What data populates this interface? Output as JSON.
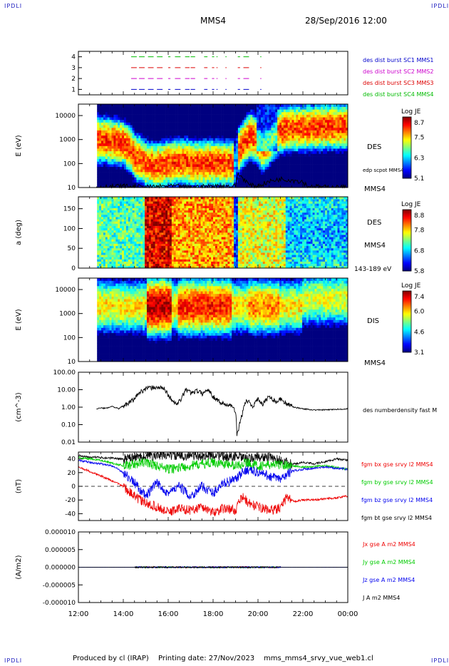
{
  "header": {
    "corner_tl": "IPDLI",
    "corner_tr": "IPDLI",
    "corner_bl": "IPDLI",
    "corner_br": "IPDLI",
    "spacecraft": "MMS4",
    "datetime": "28/Sep/2016 12:00"
  },
  "footer": {
    "produced": "Produced by cl (IRAP)",
    "printing": "Printing date: 27/Nov/2023",
    "file": "mms_mms4_srvy_vue_web1.cl"
  },
  "colors": {
    "mms1": "#0000cc",
    "mms2": "#cc00cc",
    "mms3": "#dd0000",
    "mms4": "#00bb00",
    "bx": "#ee0000",
    "by": "#00cc00",
    "bz": "#0000ee",
    "bt": "#000000"
  },
  "chart_data": [
    {
      "id": "burst",
      "type": "scatter",
      "yticks": [
        "4",
        "3",
        "2",
        "1"
      ],
      "ylim": [
        0.5,
        4.5
      ],
      "series": [
        {
          "name": "des dist burst SC1 MMS1",
          "y": 1,
          "color": "#0000cc",
          "segments": [
            [
              14.35,
              14.6
            ],
            [
              14.7,
              14.95
            ],
            [
              15.1,
              15.35
            ],
            [
              15.5,
              15.75
            ],
            [
              16.0,
              16.1
            ],
            [
              16.3,
              16.55
            ],
            [
              16.75,
              16.95
            ],
            [
              17.0,
              17.2
            ],
            [
              17.6,
              17.75
            ],
            [
              17.95,
              18.05
            ],
            [
              18.15,
              18.2
            ],
            [
              18.55,
              18.6
            ],
            [
              19.1,
              19.2
            ],
            [
              19.35,
              19.6
            ],
            [
              20.1,
              20.15
            ]
          ]
        },
        {
          "name": "des dist burst SC2 MMS2",
          "y": 2,
          "color": "#cc00cc",
          "segments": [
            [
              14.35,
              14.6
            ],
            [
              14.7,
              14.95
            ],
            [
              15.1,
              15.35
            ],
            [
              15.5,
              15.75
            ],
            [
              16.0,
              16.1
            ],
            [
              16.3,
              16.55
            ],
            [
              16.75,
              16.95
            ],
            [
              17.0,
              17.2
            ],
            [
              17.6,
              17.75
            ],
            [
              17.95,
              18.05
            ],
            [
              18.15,
              18.2
            ],
            [
              18.55,
              18.6
            ],
            [
              19.1,
              19.2
            ],
            [
              19.35,
              19.6
            ],
            [
              20.1,
              20.15
            ]
          ]
        },
        {
          "name": "des dist burst SC3 MMS3",
          "y": 3,
          "color": "#dd0000",
          "segments": [
            [
              14.35,
              14.6
            ],
            [
              14.7,
              14.95
            ],
            [
              15.1,
              15.35
            ],
            [
              15.5,
              15.75
            ],
            [
              16.0,
              16.1
            ],
            [
              16.3,
              16.55
            ],
            [
              16.75,
              16.95
            ],
            [
              17.0,
              17.2
            ],
            [
              17.6,
              17.75
            ],
            [
              17.95,
              18.05
            ],
            [
              18.15,
              18.2
            ],
            [
              18.55,
              18.6
            ],
            [
              19.1,
              19.2
            ],
            [
              19.35,
              19.6
            ],
            [
              20.1,
              20.15
            ]
          ]
        },
        {
          "name": "des dist burst SC4 MMS4",
          "y": 4,
          "color": "#00bb00",
          "segments": [
            [
              14.35,
              14.6
            ],
            [
              14.7,
              14.95
            ],
            [
              15.1,
              15.35
            ],
            [
              15.5,
              15.75
            ],
            [
              16.0,
              16.1
            ],
            [
              16.3,
              16.55
            ],
            [
              16.75,
              16.95
            ],
            [
              17.0,
              17.2
            ],
            [
              17.6,
              17.75
            ],
            [
              17.95,
              18.05
            ],
            [
              18.15,
              18.2
            ],
            [
              18.55,
              18.6
            ],
            [
              19.1,
              19.2
            ],
            [
              19.35,
              19.6
            ],
            [
              20.1,
              20.15
            ]
          ]
        }
      ]
    },
    {
      "id": "des_energy",
      "type": "heatmap",
      "ylabel": "E (eV)",
      "ylim": [
        10,
        30000
      ],
      "yscale": "log",
      "yticks": [
        "10000",
        "1000",
        "100",
        "10"
      ],
      "label": "DES",
      "colorbar_title": "Log JE",
      "colorbar_ticks": [
        "8.7",
        "7.5",
        "6.3",
        "5.1"
      ],
      "clim": [
        5.1,
        8.7
      ],
      "overlay_label": "edp scpot MMS4",
      "bottom_label": "MMS4",
      "peak_energy_eV": [
        [
          12.8,
          1000
        ],
        [
          13.5,
          900
        ],
        [
          14.0,
          700
        ],
        [
          14.5,
          200
        ],
        [
          15.0,
          100
        ],
        [
          15.5,
          80
        ],
        [
          16.0,
          100
        ],
        [
          16.5,
          120
        ],
        [
          17.0,
          110
        ],
        [
          17.5,
          100
        ],
        [
          18.0,
          110
        ],
        [
          18.5,
          100
        ],
        [
          19.0,
          100
        ],
        [
          19.3,
          600
        ],
        [
          19.7,
          1500
        ],
        [
          20.2,
          400
        ],
        [
          20.5,
          800
        ],
        [
          21.0,
          2500
        ],
        [
          21.5,
          3000
        ],
        [
          22.0,
          3000
        ],
        [
          23.0,
          3500
        ],
        [
          24.0,
          3500
        ]
      ],
      "scpot": [
        [
          12.8,
          10
        ],
        [
          14.0,
          11
        ],
        [
          15.0,
          10
        ],
        [
          16.0,
          11
        ],
        [
          17.0,
          10
        ],
        [
          18.0,
          11
        ],
        [
          19.0,
          11
        ],
        [
          19.1,
          35
        ],
        [
          19.3,
          25
        ],
        [
          19.6,
          12
        ],
        [
          20.0,
          11
        ],
        [
          20.6,
          18
        ],
        [
          21.0,
          22
        ],
        [
          21.5,
          20
        ],
        [
          22.0,
          17
        ],
        [
          22.2,
          11
        ],
        [
          23.0,
          10
        ],
        [
          24.0,
          10
        ]
      ]
    },
    {
      "id": "des_pitch",
      "type": "heatmap",
      "ylabel": "a (deg)",
      "ylim": [
        0,
        180
      ],
      "yticks": [
        "150",
        "100",
        "50",
        "0"
      ],
      "label": "DES",
      "colorbar_title": "Log JE",
      "colorbar_ticks": [
        "8.8",
        "7.8",
        "6.8",
        "5.8"
      ],
      "clim": [
        5.8,
        8.8
      ],
      "side_label": "MMS4",
      "bottom_label": "143-189 eV"
    },
    {
      "id": "dis_energy",
      "type": "heatmap",
      "ylabel": "E (eV)",
      "ylim": [
        10,
        30000
      ],
      "yscale": "log",
      "yticks": [
        "10000",
        "1000",
        "100",
        "10"
      ],
      "label": "DIS",
      "colorbar_title": "Log JE",
      "colorbar_ticks": [
        "7.4",
        "6.0",
        "4.6",
        "3.1"
      ],
      "clim": [
        3.1,
        7.4
      ],
      "bottom_label": "MMS4"
    },
    {
      "id": "density",
      "type": "line",
      "ylabel": "(cm^-3)",
      "ylim": [
        0.01,
        100
      ],
      "yscale": "log",
      "yticks": [
        "100.00",
        "10.00",
        "1.00",
        "0.10",
        "0.01"
      ],
      "series": [
        {
          "name": "des numberdensity fast M",
          "color": "#000000",
          "points": [
            [
              12.8,
              0.8
            ],
            [
              13.0,
              0.9
            ],
            [
              13.2,
              0.85
            ],
            [
              13.5,
              1.1
            ],
            [
              13.8,
              0.8
            ],
            [
              14.0,
              1.2
            ],
            [
              14.2,
              1.5
            ],
            [
              14.5,
              3.0
            ],
            [
              14.8,
              8.0
            ],
            [
              15.0,
              12.0
            ],
            [
              15.5,
              14.0
            ],
            [
              15.8,
              12.0
            ],
            [
              16.0,
              5.0
            ],
            [
              16.2,
              2.0
            ],
            [
              16.4,
              1.5
            ],
            [
              16.6,
              3.0
            ],
            [
              16.8,
              10.0
            ],
            [
              17.0,
              7.0
            ],
            [
              17.3,
              9.0
            ],
            [
              17.5,
              6.0
            ],
            [
              17.8,
              10.0
            ],
            [
              18.0,
              4.0
            ],
            [
              18.3,
              2.0
            ],
            [
              18.5,
              1.5
            ],
            [
              18.8,
              1.2
            ],
            [
              19.0,
              0.5
            ],
            [
              19.05,
              0.03
            ],
            [
              19.15,
              0.05
            ],
            [
              19.3,
              0.4
            ],
            [
              19.5,
              2.5
            ],
            [
              19.8,
              1.0
            ],
            [
              20.0,
              3.0
            ],
            [
              20.2,
              1.5
            ],
            [
              20.5,
              4.0
            ],
            [
              20.8,
              2.0
            ],
            [
              21.0,
              3.0
            ],
            [
              21.3,
              1.5
            ],
            [
              21.6,
              1.0
            ],
            [
              22.0,
              0.8
            ],
            [
              22.5,
              0.7
            ],
            [
              23.0,
              0.7
            ],
            [
              23.5,
              0.75
            ],
            [
              24.0,
              0.8
            ]
          ]
        }
      ]
    },
    {
      "id": "magnetic_field",
      "type": "line",
      "ylabel": "(nT)",
      "ylim": [
        -50,
        50
      ],
      "yticks": [
        "40",
        "20",
        "0",
        "-20",
        "-40"
      ],
      "series": [
        {
          "name": "fgm bx gse srvy l2 MMS4",
          "color": "#ee0000",
          "points": [
            [
              12.0,
              28
            ],
            [
              12.5,
              22
            ],
            [
              13.0,
              15
            ],
            [
              13.5,
              8
            ],
            [
              14.0,
              0
            ],
            [
              14.5,
              -15
            ],
            [
              15.0,
              -25
            ],
            [
              15.5,
              -30
            ],
            [
              16.0,
              -38
            ],
            [
              16.5,
              -32
            ],
            [
              17.0,
              -35
            ],
            [
              17.5,
              -30
            ],
            [
              18.0,
              -38
            ],
            [
              18.5,
              -32
            ],
            [
              19.0,
              -35
            ],
            [
              19.3,
              -15
            ],
            [
              19.6,
              -25
            ],
            [
              20.0,
              -30
            ],
            [
              20.5,
              -35
            ],
            [
              21.0,
              -32
            ],
            [
              21.3,
              -15
            ],
            [
              21.6,
              -22
            ],
            [
              22.0,
              -20
            ],
            [
              22.5,
              -20
            ],
            [
              23.0,
              -18
            ],
            [
              23.5,
              -17
            ],
            [
              24.0,
              -14
            ]
          ]
        },
        {
          "name": "fgm by gse srvy l2 MMS4",
          "color": "#00cc00",
          "points": [
            [
              12.0,
              42
            ],
            [
              13.0,
              38
            ],
            [
              14.0,
              30
            ],
            [
              15.0,
              35
            ],
            [
              16.0,
              25
            ],
            [
              17.0,
              30
            ],
            [
              18.0,
              35
            ],
            [
              19.0,
              30
            ],
            [
              19.5,
              35
            ],
            [
              20.0,
              30
            ],
            [
              21.0,
              32
            ],
            [
              22.0,
              28
            ],
            [
              23.0,
              30
            ],
            [
              24.0,
              25
            ]
          ]
        },
        {
          "name": "fgm bz gse srvy l2 MMS4",
          "color": "#0000ee",
          "points": [
            [
              12.0,
              38
            ],
            [
              12.5,
              35
            ],
            [
              13.0,
              33
            ],
            [
              13.5,
              30
            ],
            [
              14.0,
              20
            ],
            [
              14.5,
              5
            ],
            [
              15.0,
              -15
            ],
            [
              15.5,
              5
            ],
            [
              16.0,
              -10
            ],
            [
              16.5,
              0
            ],
            [
              17.0,
              -15
            ],
            [
              17.5,
              0
            ],
            [
              18.0,
              -10
            ],
            [
              18.5,
              5
            ],
            [
              19.0,
              10
            ],
            [
              19.5,
              25
            ],
            [
              20.0,
              20
            ],
            [
              20.5,
              15
            ],
            [
              21.0,
              10
            ],
            [
              21.5,
              22
            ],
            [
              22.0,
              25
            ],
            [
              23.0,
              28
            ],
            [
              24.0,
              25
            ]
          ]
        },
        {
          "name": "fgm bt gse srvy l2 MMS4",
          "color": "#000000",
          "points": [
            [
              12.0,
              45
            ],
            [
              12.5,
              43
            ],
            [
              13.0,
              42
            ],
            [
              13.5,
              41
            ],
            [
              14.0,
              40
            ],
            [
              14.5,
              42
            ],
            [
              15.0,
              45
            ],
            [
              15.5,
              44
            ],
            [
              16.0,
              46
            ],
            [
              16.5,
              44
            ],
            [
              17.0,
              45
            ],
            [
              17.5,
              44
            ],
            [
              18.0,
              46
            ],
            [
              18.5,
              43
            ],
            [
              19.0,
              44
            ],
            [
              19.5,
              40
            ],
            [
              20.0,
              43
            ],
            [
              20.5,
              42
            ],
            [
              21.0,
              38
            ],
            [
              21.5,
              32
            ],
            [
              22.0,
              35
            ],
            [
              22.5,
              33
            ],
            [
              23.0,
              36
            ],
            [
              23.5,
              40
            ],
            [
              24.0,
              38
            ]
          ]
        }
      ]
    },
    {
      "id": "current_density",
      "type": "line",
      "ylabel": "(A/m2)",
      "ylim": [
        -1e-05,
        1e-05
      ],
      "yticks": [
        "0.000010",
        "0.000005",
        "0.000000",
        "-0.000005",
        "-0.000010"
      ],
      "series": [
        {
          "name": "Jx gse A m2 MMS4",
          "color": "#ee0000"
        },
        {
          "name": "Jy gse A m2 MMS4",
          "color": "#00cc00"
        },
        {
          "name": "Jz gse A m2 MMS4",
          "color": "#0000ee"
        },
        {
          "name": "J A m2 MMS4",
          "color": "#000000"
        }
      ]
    }
  ],
  "xaxis": {
    "range": [
      12,
      24
    ],
    "ticks": [
      "12:00",
      "14:00",
      "16:00",
      "18:00",
      "20:00",
      "22:00",
      "00:00"
    ]
  }
}
